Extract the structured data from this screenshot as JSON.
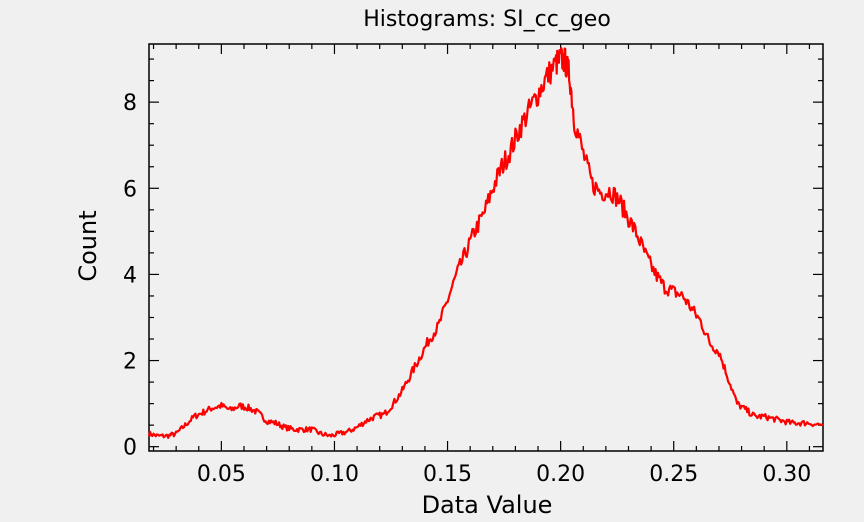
{
  "chart_data": {
    "type": "line",
    "title": "Histograms: SI_cc_geo",
    "xlabel": "Data Value",
    "ylabel": "Count",
    "xlim": [
      0.018,
      0.316
    ],
    "ylim": [
      -0.1,
      9.35
    ],
    "x_ticks": [
      0.05,
      0.1,
      0.15,
      0.2,
      0.25,
      0.3
    ],
    "x_tick_labels": [
      "0.05",
      "0.10",
      "0.15",
      "0.20",
      "0.25",
      "0.30"
    ],
    "y_ticks": [
      0,
      2,
      4,
      6,
      8
    ],
    "y_tick_labels": [
      "0",
      "2",
      "4",
      "6",
      "8"
    ],
    "grid": false,
    "line_color": "#ff0000",
    "series": [
      {
        "x": [
          0.018,
          0.022,
          0.026,
          0.03,
          0.034,
          0.038,
          0.042,
          0.046,
          0.05,
          0.054,
          0.058,
          0.062,
          0.066,
          0.07,
          0.074,
          0.078,
          0.082,
          0.086,
          0.09,
          0.094,
          0.098,
          0.102,
          0.106,
          0.11,
          0.114,
          0.118,
          0.122,
          0.126,
          0.13,
          0.134,
          0.138,
          0.142,
          0.146,
          0.15,
          0.154,
          0.158,
          0.162,
          0.166,
          0.17,
          0.174,
          0.178,
          0.182,
          0.186,
          0.19,
          0.194,
          0.198,
          0.2,
          0.202,
          0.204,
          0.206,
          0.21,
          0.214,
          0.218,
          0.222,
          0.226,
          0.23,
          0.234,
          0.238,
          0.242,
          0.246,
          0.25,
          0.254,
          0.258,
          0.262,
          0.266,
          0.27,
          0.274,
          0.278,
          0.282,
          0.286,
          0.29,
          0.294,
          0.298,
          0.302,
          0.306,
          0.31,
          0.316
        ],
        "values": [
          0.3,
          0.25,
          0.25,
          0.3,
          0.5,
          0.7,
          0.8,
          0.9,
          0.95,
          0.85,
          0.95,
          0.9,
          0.8,
          0.6,
          0.55,
          0.45,
          0.4,
          0.4,
          0.4,
          0.3,
          0.25,
          0.3,
          0.35,
          0.45,
          0.6,
          0.7,
          0.75,
          1.0,
          1.3,
          1.7,
          2.1,
          2.5,
          2.8,
          3.4,
          4.0,
          4.5,
          5.0,
          5.4,
          6.0,
          6.5,
          6.9,
          7.4,
          7.8,
          8.2,
          8.6,
          8.9,
          9.0,
          8.95,
          8.6,
          7.6,
          6.8,
          6.1,
          5.9,
          5.95,
          5.7,
          5.3,
          4.9,
          4.4,
          4.0,
          3.7,
          3.6,
          3.5,
          3.2,
          2.9,
          2.4,
          2.2,
          1.6,
          1.0,
          0.85,
          0.7,
          0.7,
          0.65,
          0.6,
          0.55,
          0.55,
          0.55,
          0.5
        ]
      }
    ]
  }
}
